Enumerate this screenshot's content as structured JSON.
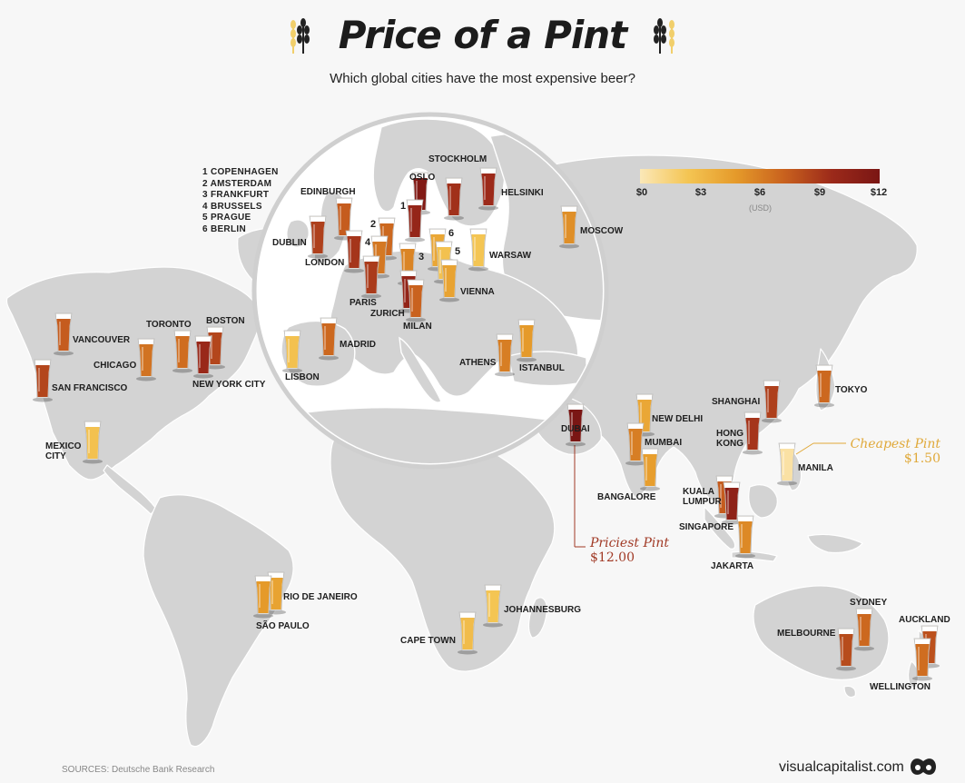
{
  "header": {
    "title": "Price of a Pint",
    "subtitle": "Which global cities have the most expensive beer?"
  },
  "numbered_list": [
    "1 COPENHAGEN",
    "2 AMSTERDAM",
    "3 FRANKFURT",
    "4 BRUSSELS",
    "5 PRAGUE",
    "6 BERLIN"
  ],
  "legend": {
    "ticks": [
      "$0",
      "$3",
      "$6",
      "$9",
      "$12"
    ],
    "unit": "(USD)",
    "colors": [
      "#fbe8b8",
      "#f4c553",
      "#e59a2a",
      "#c9621e",
      "#9c2a1a",
      "#7a1614"
    ]
  },
  "annotations": {
    "cheapest_label": "Cheapest Pint",
    "cheapest_value": "$1.50",
    "priciest_label": "Priciest Pint",
    "priciest_value": "$12.00"
  },
  "cities": [
    {
      "label": "OSLO",
      "level": 0.96
    },
    {
      "label": "STOCKHOLM",
      "level": 0.78
    },
    {
      "label": "HELSINKI",
      "level": 0.8
    },
    {
      "label": "EDINBURGH",
      "level": 0.62
    },
    {
      "label": "1",
      "level": 0.84
    },
    {
      "label": "2",
      "level": 0.58
    },
    {
      "label": "DUBLIN",
      "level": 0.72
    },
    {
      "label": "LONDON",
      "level": 0.76
    },
    {
      "label": "4",
      "level": 0.52
    },
    {
      "label": "3",
      "level": 0.48
    },
    {
      "label": "6",
      "level": 0.34
    },
    {
      "label": "5",
      "level": 0.22
    },
    {
      "label": "WARSAW",
      "level": 0.2
    },
    {
      "label": "MOSCOW",
      "level": 0.44
    },
    {
      "label": "PARIS",
      "level": 0.74
    },
    {
      "label": "ZURICH",
      "level": 0.86
    },
    {
      "label": "MILAN",
      "level": 0.6
    },
    {
      "label": "VIENNA",
      "level": 0.36
    },
    {
      "label": "MADRID",
      "level": 0.58
    },
    {
      "label": "LISBON",
      "level": 0.22
    },
    {
      "label": "ATHENS",
      "level": 0.5
    },
    {
      "label": "ISTANBUL",
      "level": 0.4
    },
    {
      "label": "VANCOUVER",
      "level": 0.62
    },
    {
      "label": "TORONTO",
      "level": 0.56
    },
    {
      "label": "BOSTON",
      "level": 0.7
    },
    {
      "label": "CHICAGO",
      "level": 0.54
    },
    {
      "label": "NEW YORK CITY",
      "level": 0.82
    },
    {
      "label": "SAN FRANCISCO",
      "level": 0.7
    },
    {
      "label": "MEXICO CITY",
      "level": 0.22
    },
    {
      "label": "DUBAI",
      "level": 1.0
    },
    {
      "label": "NEW DELHI",
      "level": 0.34
    },
    {
      "label": "MUMBAI",
      "level": 0.5
    },
    {
      "label": "BANGALORE",
      "level": 0.38
    },
    {
      "label": "SHANGHAI",
      "level": 0.72
    },
    {
      "label": "TOKYO",
      "level": 0.58
    },
    {
      "label": "HONG KONG",
      "level": 0.76
    },
    {
      "label": "MANILA",
      "level": 0.04
    },
    {
      "label": "KUALA LUMPUR",
      "level": 0.62
    },
    {
      "label": "SINGAPORE",
      "level": 0.88
    },
    {
      "label": "JAKARTA",
      "level": 0.46
    },
    {
      "label": "RIO DE JANEIRO",
      "level": 0.36
    },
    {
      "label": "SÃO PAULO",
      "level": 0.4
    },
    {
      "label": "JOHANNESBURG",
      "level": 0.2
    },
    {
      "label": "CAPE TOWN",
      "level": 0.24
    },
    {
      "label": "SYDNEY",
      "level": 0.58
    },
    {
      "label": "MELBOURNE",
      "level": 0.68
    },
    {
      "label": "AUCKLAND",
      "level": 0.66
    },
    {
      "label": "WELLINGTON",
      "level": 0.56
    }
  ],
  "footer": {
    "sources": "SOURCES: Deutsche Bank Research",
    "brand": "visualcapitalist.com"
  }
}
